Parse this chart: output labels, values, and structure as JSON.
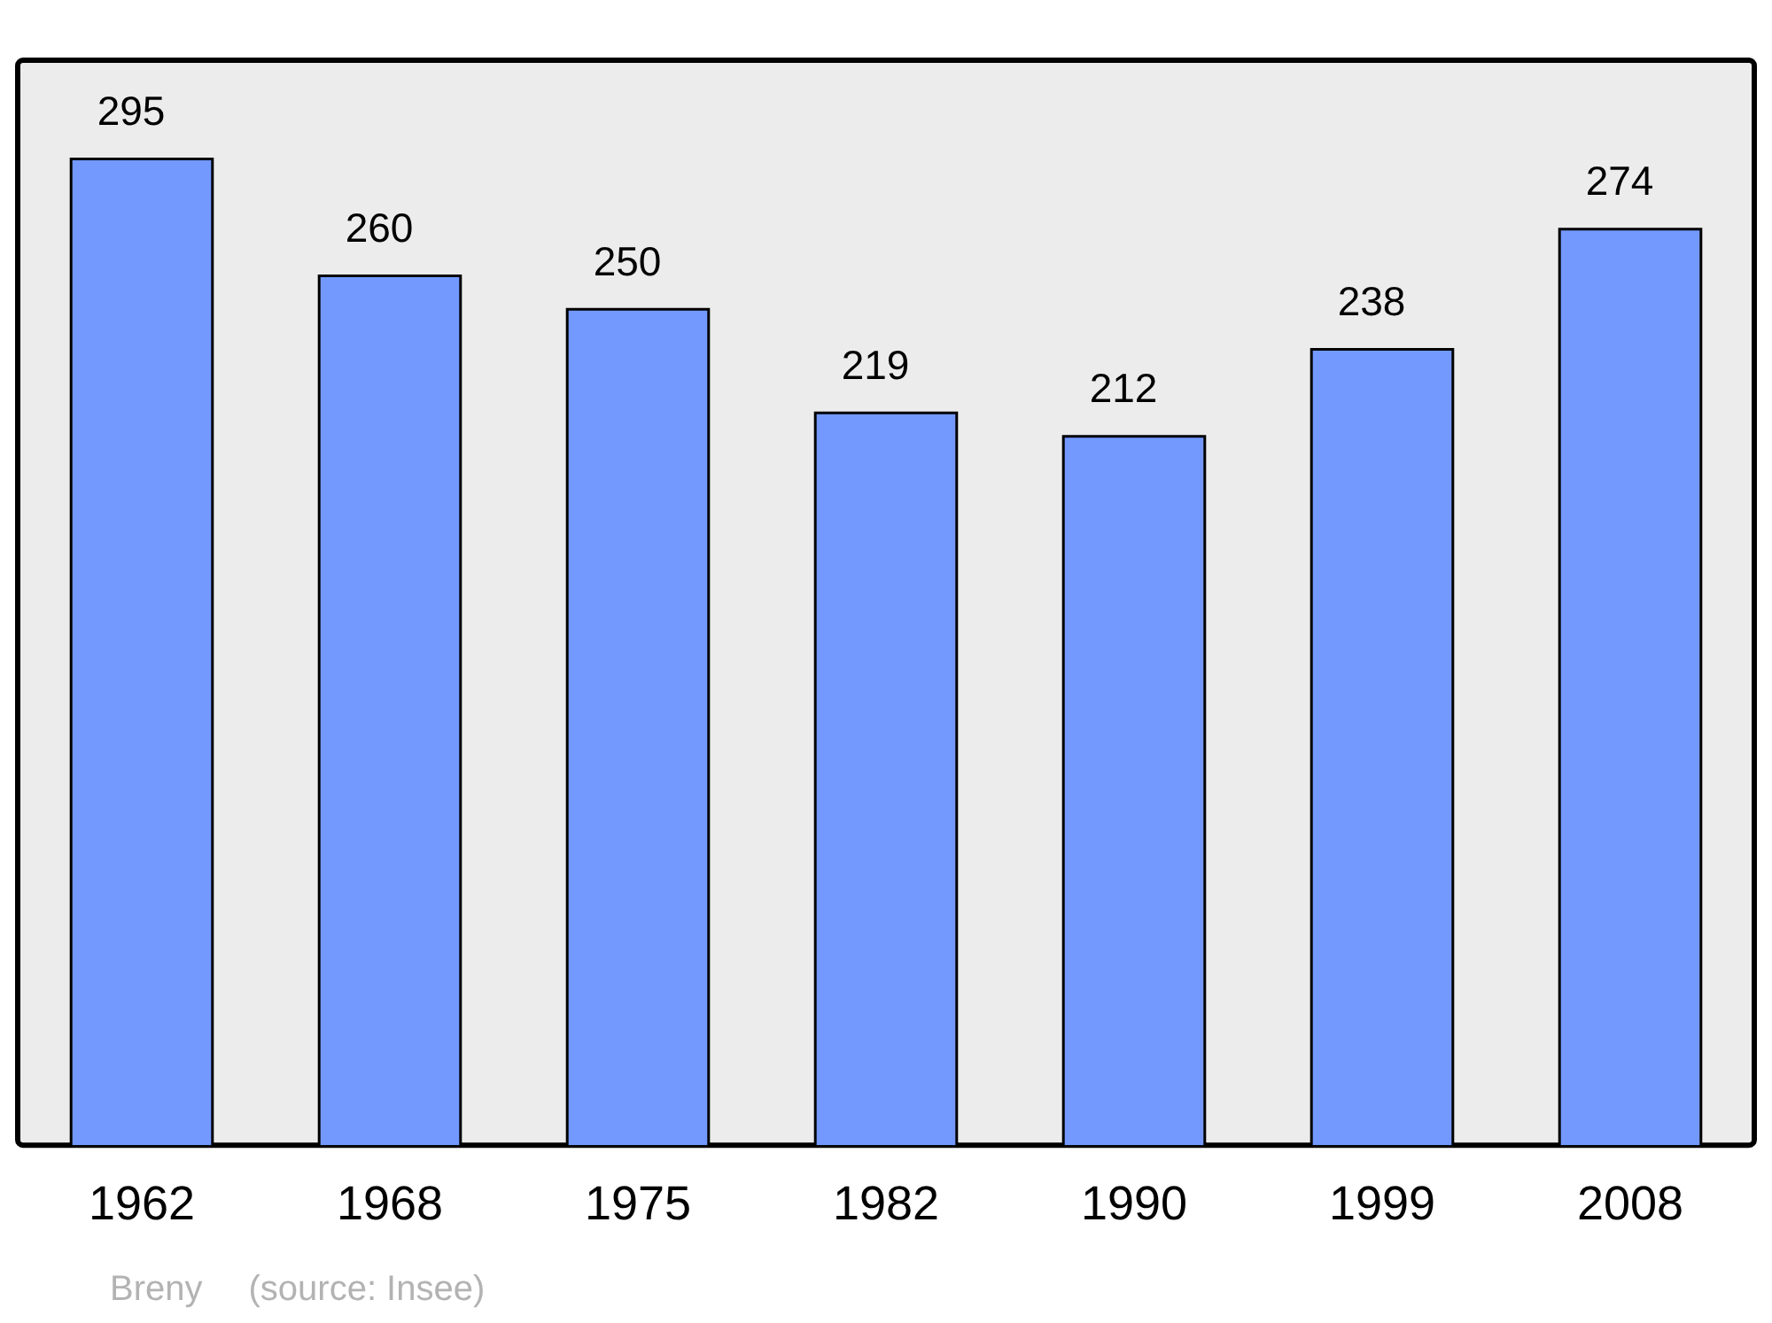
{
  "chart_data": {
    "type": "bar",
    "categories": [
      "1962",
      "1968",
      "1975",
      "1982",
      "1990",
      "1999",
      "2008"
    ],
    "values": [
      295,
      260,
      250,
      219,
      212,
      238,
      274
    ],
    "color": "#7399ff",
    "data_labels": true,
    "annotations": [
      "Breny",
      "(source: Insee)"
    ]
  }
}
